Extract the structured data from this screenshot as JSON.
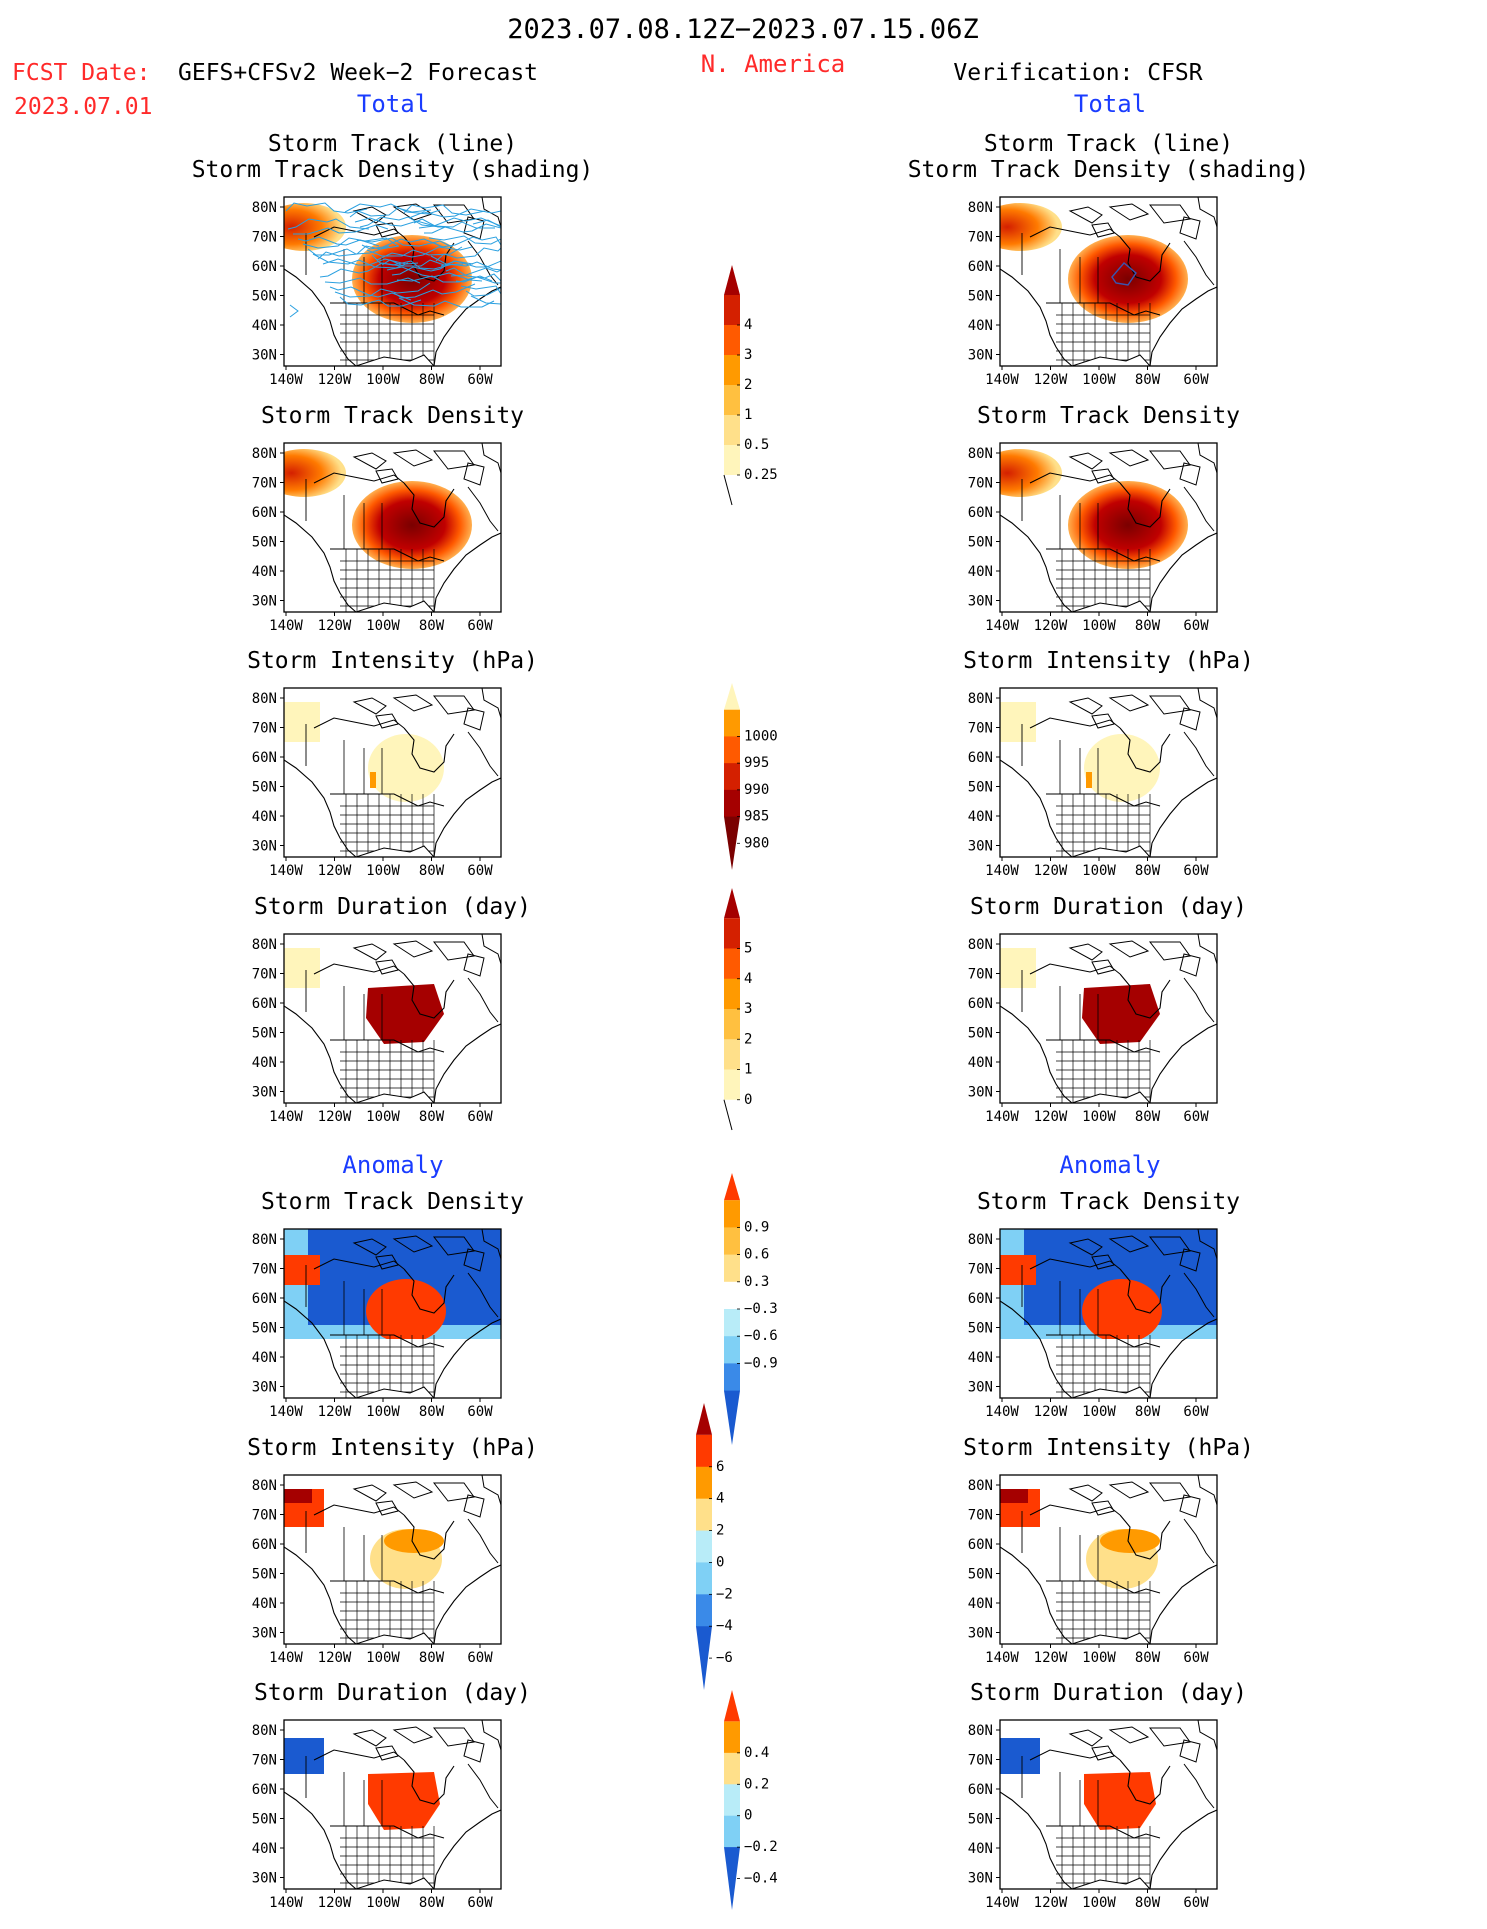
{
  "header": {
    "title": "2023.07.08.12Z−2023.07.15.06Z",
    "region": "N. America",
    "fcst_label": "FCST Date:",
    "fcst_date": "2023.07.01",
    "model": "GEFS+CFSv2 Week−2 Forecast",
    "verification": "Verification: CFSR",
    "total_label": "Total",
    "anomaly_label": "Anomaly"
  },
  "panel_titles": {
    "track_line": "Storm Track (line)",
    "track_density_shading": "Storm Track Density (shading)",
    "track_density": "Storm Track Density",
    "intensity": "Storm Intensity (hPa)",
    "duration": "Storm Duration (day)"
  },
  "axes": {
    "lat_labels": [
      "80N",
      "70N",
      "60N",
      "50N",
      "40N",
      "30N"
    ],
    "lon_labels": [
      "140W",
      "120W",
      "100W",
      "80W",
      "60W"
    ]
  },
  "colors": {
    "title_red": "#ff2a2a",
    "title_blue": "#1a3cff",
    "track_line": "#2aa0e0",
    "track_line_verif": "#3a55b0"
  },
  "chart_data": [
    {
      "type": "colorbar",
      "name": "total-density",
      "levels": [
        "4",
        "3",
        "2",
        "1",
        "0.5",
        "0.25"
      ],
      "colors": [
        "#a50000",
        "#d42000",
        "#ff5a00",
        "#ff9a00",
        "#ffc040",
        "#ffe08a",
        "#fff5bb"
      ]
    },
    {
      "type": "colorbar",
      "name": "total-intensity",
      "levels": [
        "1000",
        "995",
        "990",
        "985",
        "980"
      ],
      "colors": [
        "#fff5bb",
        "#ff9a00",
        "#ff5a00",
        "#d42000",
        "#a50000",
        "#7a0000"
      ]
    },
    {
      "type": "colorbar",
      "name": "total-duration",
      "levels": [
        "5",
        "4",
        "3",
        "2",
        "1",
        "0"
      ],
      "colors": [
        "#a50000",
        "#d42000",
        "#ff5a00",
        "#ff9a00",
        "#ffc040",
        "#ffe08a",
        "#fff5bb"
      ]
    },
    {
      "type": "colorbar",
      "name": "anomaly-density",
      "levels": [
        "0.9",
        "0.6",
        "0.3",
        "−0.3",
        "−0.6",
        "−0.9"
      ],
      "colors": [
        "#ff3a00",
        "#ff9a00",
        "#ffc040",
        "#ffe08a",
        "#ffffff",
        "#b8ecf8",
        "#7fd0f5",
        "#3a8ae8",
        "#1a5ad0"
      ]
    },
    {
      "type": "colorbar",
      "name": "anomaly-intensity",
      "levels": [
        "6",
        "4",
        "2",
        "0",
        "−2",
        "−4",
        "−6"
      ],
      "colors": [
        "#a50000",
        "#ff3a00",
        "#ff9a00",
        "#ffe08a",
        "#b8ecf8",
        "#7fd0f5",
        "#3a8ae8",
        "#1a5ad0"
      ]
    },
    {
      "type": "colorbar",
      "name": "anomaly-duration",
      "levels": [
        "0.4",
        "0.2",
        "0",
        "−0.2",
        "−0.4"
      ],
      "colors": [
        "#ff3a00",
        "#ff9a00",
        "#ffe08a",
        "#b8ecf8",
        "#7fd0f5",
        "#1a5ad0"
      ]
    }
  ]
}
